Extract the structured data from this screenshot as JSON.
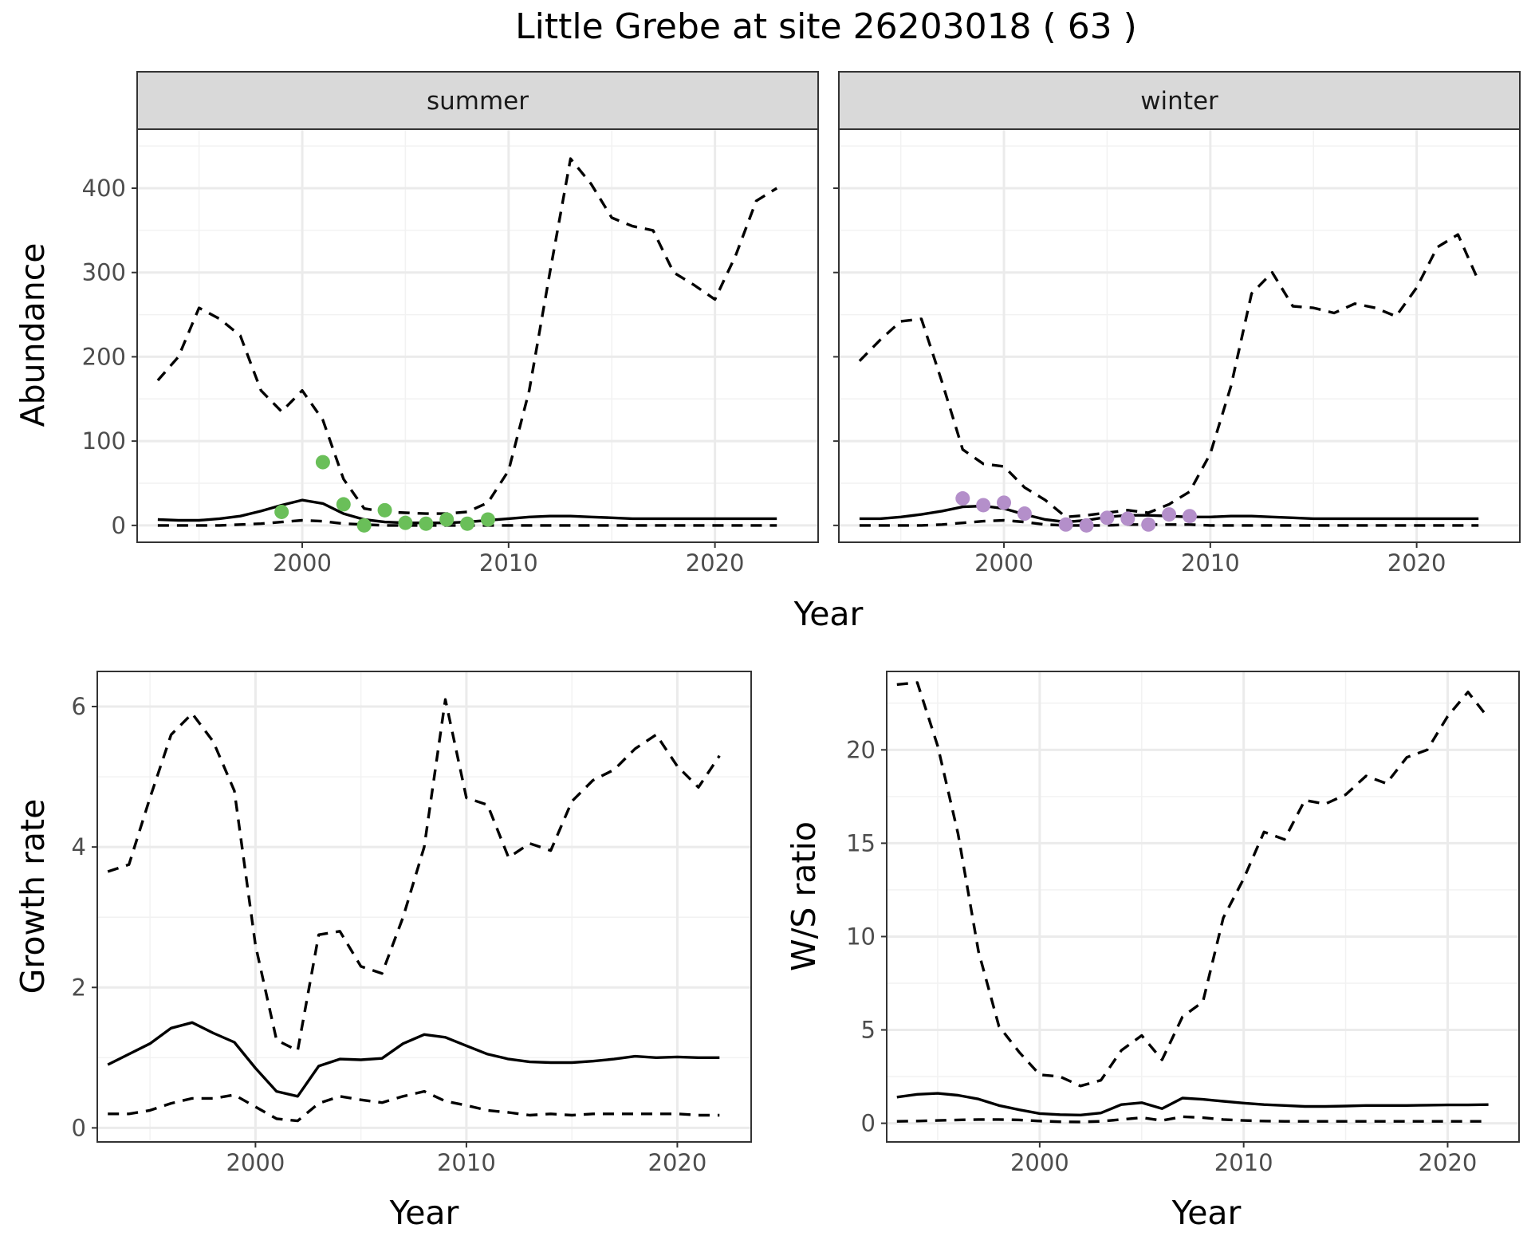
{
  "title": "Little Grebe at site 26203018 ( 63 )",
  "colors": {
    "summer_points": "#6abf59",
    "winter_points": "#b48fca",
    "lines": "#000000"
  },
  "chart_data": [
    {
      "id": "abundance",
      "type": "line",
      "facet_label_summer": "summer",
      "facet_label_winter": "winter",
      "xlabel": "Year",
      "ylabel": "Abundance",
      "xlim": [
        1992,
        2025
      ],
      "ylim": [
        -20,
        470
      ],
      "x_ticks": [
        2000,
        2010,
        2020
      ],
      "y_ticks": [
        0,
        100,
        200,
        300,
        400
      ],
      "grid": true,
      "facets": [
        {
          "name": "summer",
          "median": {
            "x": [
              1993,
              1994,
              1995,
              1996,
              1997,
              1998,
              1999,
              2000,
              2001,
              2002,
              2003,
              2004,
              2005,
              2006,
              2007,
              2008,
              2009,
              2010,
              2011,
              2012,
              2013,
              2014,
              2015,
              2016,
              2017,
              2018,
              2019,
              2020,
              2021,
              2022,
              2023
            ],
            "y": [
              7,
              6,
              6,
              8,
              11,
              17,
              24,
              30,
              26,
              14,
              7,
              4,
              3,
              3,
              3,
              4,
              6,
              8,
              10,
              11,
              11,
              10,
              9,
              8,
              8,
              8,
              8,
              8,
              8,
              8,
              8
            ]
          },
          "upper": {
            "x": [
              1993,
              1994,
              1995,
              1996,
              1997,
              1998,
              1999,
              2000,
              2001,
              2002,
              2003,
              2004,
              2005,
              2006,
              2007,
              2008,
              2009,
              2010,
              2011,
              2012,
              2013,
              2014,
              2015,
              2016,
              2017,
              2018,
              2019,
              2020,
              2021,
              2022,
              2023
            ],
            "y": [
              172,
              200,
              258,
              245,
              225,
              160,
              135,
              160,
              125,
              55,
              20,
              16,
              15,
              14,
              14,
              16,
              27,
              65,
              160,
              300,
              435,
              405,
              365,
              355,
              350,
              300,
              285,
              268,
              320,
              385,
              400
            ]
          },
          "lower": {
            "x": [
              1993,
              1994,
              1995,
              1996,
              1997,
              1998,
              1999,
              2000,
              2001,
              2002,
              2003,
              2004,
              2005,
              2006,
              2007,
              2008,
              2009,
              2010,
              2011,
              2012,
              2013,
              2014,
              2015,
              2016,
              2017,
              2018,
              2019,
              2020,
              2021,
              2022,
              2023
            ],
            "y": [
              0,
              0,
              0,
              0,
              1,
              2,
              4,
              6,
              5,
              2,
              1,
              0,
              0,
              0,
              0,
              0,
              0,
              0,
              0,
              0,
              0,
              0,
              0,
              0,
              0,
              0,
              0,
              0,
              0,
              0,
              0
            ]
          },
          "points": {
            "x": [
              1999,
              2001,
              2002,
              2003,
              2004,
              2005,
              2006,
              2007,
              2008,
              2009
            ],
            "y": [
              16,
              75,
              25,
              0,
              18,
              3,
              2,
              7,
              2,
              7
            ]
          }
        },
        {
          "name": "winter",
          "median": {
            "x": [
              1993,
              1994,
              1995,
              1996,
              1997,
              1998,
              1999,
              2000,
              2001,
              2002,
              2003,
              2004,
              2005,
              2006,
              2007,
              2008,
              2009,
              2010,
              2011,
              2012,
              2013,
              2014,
              2015,
              2016,
              2017,
              2018,
              2019,
              2020,
              2021,
              2022,
              2023
            ],
            "y": [
              8,
              8,
              10,
              13,
              17,
              22,
              23,
              20,
              13,
              7,
              4,
              6,
              10,
              12,
              12,
              11,
              10,
              10,
              11,
              11,
              10,
              9,
              8,
              8,
              8,
              8,
              8,
              8,
              8,
              8,
              8
            ]
          },
          "upper": {
            "x": [
              1993,
              1994,
              1995,
              1996,
              1997,
              1998,
              1999,
              2000,
              2001,
              2002,
              2003,
              2004,
              2005,
              2006,
              2007,
              2008,
              2009,
              2010,
              2011,
              2012,
              2013,
              2014,
              2015,
              2016,
              2017,
              2018,
              2019,
              2020,
              2021,
              2022,
              2023
            ],
            "y": [
              195,
              220,
              242,
              245,
              170,
              90,
              73,
              70,
              45,
              30,
              10,
              12,
              15,
              18,
              15,
              25,
              40,
              85,
              165,
              275,
              300,
              260,
              258,
              252,
              263,
              258,
              248,
              282,
              330,
              345,
              290
            ]
          },
          "lower": {
            "x": [
              1993,
              1994,
              1995,
              1996,
              1997,
              1998,
              1999,
              2000,
              2001,
              2002,
              2003,
              2004,
              2005,
              2006,
              2007,
              2008,
              2009,
              2010,
              2011,
              2012,
              2013,
              2014,
              2015,
              2016,
              2017,
              2018,
              2019,
              2020,
              2021,
              2022,
              2023
            ],
            "y": [
              0,
              0,
              0,
              0,
              1,
              3,
              5,
              6,
              4,
              1,
              0,
              0,
              0,
              1,
              1,
              1,
              1,
              0,
              0,
              0,
              0,
              0,
              0,
              0,
              0,
              0,
              0,
              0,
              0,
              0,
              0
            ]
          },
          "points": {
            "x": [
              1998,
              1999,
              2000,
              2001,
              2003,
              2004,
              2005,
              2006,
              2007,
              2008,
              2009
            ],
            "y": [
              32,
              24,
              27,
              14,
              1,
              0,
              9,
              8,
              1,
              13,
              11
            ]
          }
        }
      ]
    },
    {
      "id": "growth",
      "type": "line",
      "xlabel": "Year",
      "ylabel": "Growth rate",
      "xlim": [
        1992.5,
        2023.5
      ],
      "ylim": [
        -0.2,
        6.5
      ],
      "x_ticks": [
        2000,
        2010,
        2020
      ],
      "y_ticks": [
        0,
        2,
        4,
        6
      ],
      "grid": true,
      "median": {
        "x": [
          1993,
          1994,
          1995,
          1996,
          1997,
          1998,
          1999,
          2000,
          2001,
          2002,
          2003,
          2004,
          2005,
          2006,
          2007,
          2008,
          2009,
          2010,
          2011,
          2012,
          2013,
          2014,
          2015,
          2016,
          2017,
          2018,
          2019,
          2020,
          2021,
          2022
        ],
        "y": [
          0.9,
          1.05,
          1.2,
          1.42,
          1.5,
          1.35,
          1.22,
          0.85,
          0.52,
          0.45,
          0.88,
          0.98,
          0.97,
          0.99,
          1.2,
          1.33,
          1.29,
          1.17,
          1.05,
          0.98,
          0.94,
          0.93,
          0.93,
          0.95,
          0.98,
          1.02,
          1.0,
          1.01,
          1.0,
          1.0
        ]
      },
      "upper": {
        "x": [
          1993,
          1994,
          1995,
          1996,
          1997,
          1998,
          1999,
          2000,
          2001,
          2002,
          2003,
          2004,
          2005,
          2006,
          2007,
          2008,
          2009,
          2010,
          2011,
          2012,
          2013,
          2014,
          2015,
          2016,
          2017,
          2018,
          2019,
          2020,
          2021,
          2022
        ],
        "y": [
          3.65,
          3.75,
          4.7,
          5.6,
          5.9,
          5.5,
          4.8,
          2.6,
          1.25,
          1.1,
          2.75,
          2.8,
          2.3,
          2.2,
          3.0,
          4.0,
          6.1,
          4.7,
          4.6,
          3.85,
          4.05,
          3.95,
          4.65,
          4.95,
          5.1,
          5.4,
          5.6,
          5.15,
          4.85,
          5.3
        ]
      },
      "lower": {
        "x": [
          1993,
          1994,
          1995,
          1996,
          1997,
          1998,
          1999,
          2000,
          2001,
          2002,
          2003,
          2004,
          2005,
          2006,
          2007,
          2008,
          2009,
          2010,
          2011,
          2012,
          2013,
          2014,
          2015,
          2016,
          2017,
          2018,
          2019,
          2020,
          2021,
          2022
        ],
        "y": [
          0.2,
          0.2,
          0.25,
          0.35,
          0.42,
          0.42,
          0.47,
          0.3,
          0.13,
          0.1,
          0.35,
          0.45,
          0.4,
          0.36,
          0.45,
          0.52,
          0.38,
          0.32,
          0.25,
          0.22,
          0.18,
          0.2,
          0.18,
          0.2,
          0.2,
          0.2,
          0.2,
          0.2,
          0.18,
          0.18
        ]
      }
    },
    {
      "id": "ws_ratio",
      "type": "line",
      "xlabel": "Year",
      "ylabel": "W/S ratio",
      "xlim": [
        1992.5,
        2023.5
      ],
      "ylim": [
        -1,
        24.2
      ],
      "x_ticks": [
        2000,
        2010,
        2020
      ],
      "y_ticks": [
        0,
        5,
        10,
        15,
        20
      ],
      "grid": true,
      "median": {
        "x": [
          1993,
          1994,
          1995,
          1996,
          1997,
          1998,
          1999,
          2000,
          2001,
          2002,
          2003,
          2004,
          2005,
          2006,
          2007,
          2008,
          2009,
          2010,
          2011,
          2012,
          2013,
          2014,
          2015,
          2016,
          2017,
          2018,
          2019,
          2020,
          2021,
          2022
        ],
        "y": [
          1.4,
          1.55,
          1.6,
          1.5,
          1.3,
          0.95,
          0.72,
          0.52,
          0.46,
          0.44,
          0.55,
          1.0,
          1.1,
          0.78,
          1.35,
          1.28,
          1.18,
          1.08,
          1.0,
          0.95,
          0.9,
          0.9,
          0.92,
          0.95,
          0.95,
          0.95,
          0.97,
          0.98,
          0.98,
          1.0
        ]
      },
      "upper": {
        "x": [
          1993,
          1994,
          1995,
          1996,
          1997,
          1998,
          1999,
          2000,
          2001,
          2002,
          2003,
          2004,
          2005,
          2006,
          2007,
          2008,
          2009,
          2010,
          2011,
          2012,
          2013,
          2014,
          2015,
          2016,
          2017,
          2018,
          2019,
          2020,
          2021,
          2022
        ],
        "y": [
          23.5,
          23.6,
          20.2,
          15.5,
          9.2,
          5.2,
          3.8,
          2.6,
          2.5,
          2.0,
          2.3,
          3.9,
          4.7,
          3.4,
          5.7,
          6.5,
          11.0,
          13.1,
          15.6,
          15.2,
          17.3,
          17.1,
          17.6,
          18.6,
          18.2,
          19.6,
          20.0,
          21.8,
          23.1,
          21.7
        ]
      },
      "lower": {
        "x": [
          1993,
          1994,
          1995,
          1996,
          1997,
          1998,
          1999,
          2000,
          2001,
          2002,
          2003,
          2004,
          2005,
          2006,
          2007,
          2008,
          2009,
          2010,
          2011,
          2012,
          2013,
          2014,
          2015,
          2016,
          2017,
          2018,
          2019,
          2020,
          2021,
          2022
        ],
        "y": [
          0.1,
          0.12,
          0.15,
          0.18,
          0.2,
          0.2,
          0.18,
          0.12,
          0.08,
          0.07,
          0.1,
          0.2,
          0.3,
          0.15,
          0.35,
          0.3,
          0.2,
          0.15,
          0.12,
          0.1,
          0.1,
          0.1,
          0.1,
          0.1,
          0.1,
          0.1,
          0.1,
          0.1,
          0.1,
          0.1
        ]
      }
    }
  ]
}
